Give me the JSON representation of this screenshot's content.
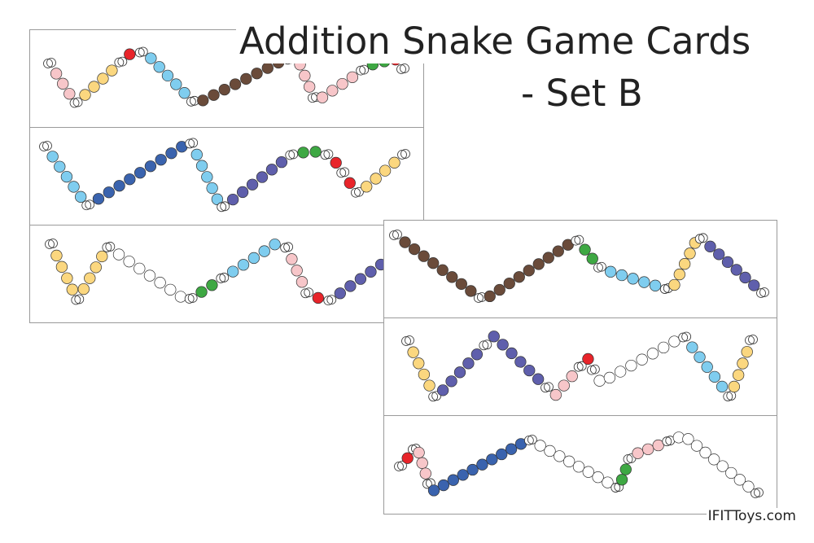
{
  "title": {
    "line1": "Addition Snake Game Cards",
    "line2": "- Set B"
  },
  "footer": "IFITToys.com",
  "colors": {
    "link": "#ffffff",
    "pink": "#f7c6c9",
    "yellow": "#fbd77f",
    "red": "#e8242a",
    "lightblue": "#7fcdef",
    "brown": "#6a4b3a",
    "darkblue": "#3a63ae",
    "purple": "#5f5fac",
    "green": "#3ea843",
    "white": "#ffffff"
  },
  "cards": [
    {
      "beads": [
        {
          "c": "link",
          "n": 1
        },
        {
          "c": "pink",
          "n": 3
        },
        {
          "c": "link",
          "n": 1
        },
        {
          "c": "yellow",
          "n": 4
        },
        {
          "c": "link",
          "n": 1
        },
        {
          "c": "red",
          "n": 1
        },
        {
          "c": "link",
          "n": 1
        },
        {
          "c": "lightblue",
          "n": 5
        },
        {
          "c": "link",
          "n": 1
        },
        {
          "c": "brown",
          "n": 8
        },
        {
          "c": "link",
          "n": 1
        },
        {
          "c": "pink",
          "n": 3
        },
        {
          "c": "link",
          "n": 1
        },
        {
          "c": "pink",
          "n": 4
        },
        {
          "c": "link",
          "n": 1
        },
        {
          "c": "green",
          "n": 2
        },
        {
          "c": "red",
          "n": 1
        },
        {
          "c": "link",
          "n": 1
        }
      ]
    },
    {
      "beads": [
        {
          "c": "link",
          "n": 1
        },
        {
          "c": "lightblue",
          "n": 5
        },
        {
          "c": "link",
          "n": 1
        },
        {
          "c": "darkblue",
          "n": 9
        },
        {
          "c": "link",
          "n": 1
        },
        {
          "c": "lightblue",
          "n": 5
        },
        {
          "c": "link",
          "n": 1
        },
        {
          "c": "purple",
          "n": 6
        },
        {
          "c": "link",
          "n": 1
        },
        {
          "c": "green",
          "n": 2
        },
        {
          "c": "link",
          "n": 1
        },
        {
          "c": "red",
          "n": 1
        },
        {
          "c": "link",
          "n": 1
        },
        {
          "c": "red",
          "n": 1
        },
        {
          "c": "link",
          "n": 1
        },
        {
          "c": "yellow",
          "n": 4
        },
        {
          "c": "link",
          "n": 1
        }
      ]
    },
    {
      "beads": [
        {
          "c": "link",
          "n": 1
        },
        {
          "c": "yellow",
          "n": 4
        },
        {
          "c": "link",
          "n": 1
        },
        {
          "c": "yellow",
          "n": 4
        },
        {
          "c": "link",
          "n": 1
        },
        {
          "c": "white",
          "n": 7
        },
        {
          "c": "link",
          "n": 1
        },
        {
          "c": "green",
          "n": 2
        },
        {
          "c": "link",
          "n": 1
        },
        {
          "c": "lightblue",
          "n": 5
        },
        {
          "c": "link",
          "n": 1
        },
        {
          "c": "pink",
          "n": 3
        },
        {
          "c": "link",
          "n": 1
        },
        {
          "c": "red",
          "n": 1
        },
        {
          "c": "link",
          "n": 1
        },
        {
          "c": "purple",
          "n": 5
        }
      ]
    },
    {
      "beads": [
        {
          "c": "link",
          "n": 1
        },
        {
          "c": "brown",
          "n": 8
        },
        {
          "c": "link",
          "n": 1
        },
        {
          "c": "brown",
          "n": 9
        },
        {
          "c": "link",
          "n": 1
        },
        {
          "c": "green",
          "n": 2
        },
        {
          "c": "link",
          "n": 1
        },
        {
          "c": "lightblue",
          "n": 5
        },
        {
          "c": "link",
          "n": 1
        },
        {
          "c": "yellow",
          "n": 5
        },
        {
          "c": "link",
          "n": 1
        },
        {
          "c": "purple",
          "n": 6
        },
        {
          "c": "link",
          "n": 1
        }
      ]
    },
    {
      "beads": [
        {
          "c": "link",
          "n": 1
        },
        {
          "c": "yellow",
          "n": 4
        },
        {
          "c": "link",
          "n": 1
        },
        {
          "c": "purple",
          "n": 5
        },
        {
          "c": "link",
          "n": 1
        },
        {
          "c": "purple",
          "n": 6
        },
        {
          "c": "link",
          "n": 1
        },
        {
          "c": "pink",
          "n": 3
        },
        {
          "c": "link",
          "n": 1
        },
        {
          "c": "red",
          "n": 1
        },
        {
          "c": "link",
          "n": 1
        },
        {
          "c": "white",
          "n": 8
        },
        {
          "c": "link",
          "n": 1
        },
        {
          "c": "lightblue",
          "n": 5
        },
        {
          "c": "link",
          "n": 1
        },
        {
          "c": "yellow",
          "n": 4
        },
        {
          "c": "link",
          "n": 1
        }
      ]
    },
    {
      "beads": [
        {
          "c": "link",
          "n": 1
        },
        {
          "c": "red",
          "n": 1
        },
        {
          "c": "link",
          "n": 1
        },
        {
          "c": "pink",
          "n": 3
        },
        {
          "c": "link",
          "n": 1
        },
        {
          "c": "darkblue",
          "n": 10
        },
        {
          "c": "link",
          "n": 1
        },
        {
          "c": "white",
          "n": 8
        },
        {
          "c": "link",
          "n": 1
        },
        {
          "c": "green",
          "n": 2
        },
        {
          "c": "link",
          "n": 1
        },
        {
          "c": "pink",
          "n": 3
        },
        {
          "c": "link",
          "n": 1
        },
        {
          "c": "white",
          "n": 9
        },
        {
          "c": "link",
          "n": 1
        }
      ]
    }
  ]
}
